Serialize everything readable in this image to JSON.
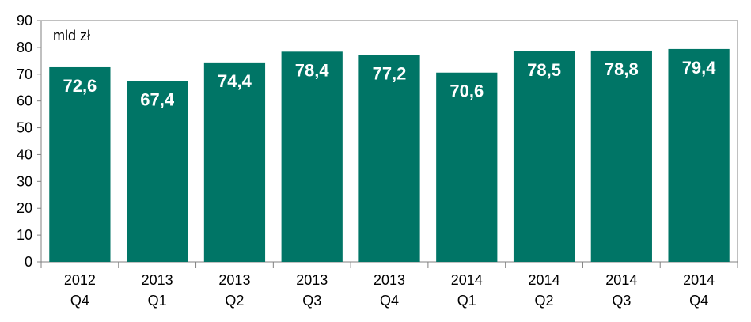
{
  "chart_data": {
    "type": "bar",
    "categories": [
      [
        "2012",
        "Q4"
      ],
      [
        "2013",
        "Q1"
      ],
      [
        "2013",
        "Q2"
      ],
      [
        "2013",
        "Q3"
      ],
      [
        "2013",
        "Q4"
      ],
      [
        "2014",
        "Q1"
      ],
      [
        "2014",
        "Q2"
      ],
      [
        "2014",
        "Q3"
      ],
      [
        "2014",
        "Q4"
      ]
    ],
    "values": [
      72.6,
      67.4,
      74.4,
      78.4,
      77.2,
      70.6,
      78.5,
      78.8,
      79.4
    ],
    "data_labels": [
      "72,6",
      "67,4",
      "74,4",
      "78,4",
      "77,2",
      "70,6",
      "78,5",
      "78,8",
      "79,4"
    ],
    "unit_label": "mld zł",
    "title": "",
    "xlabel": "",
    "ylabel": "",
    "ylim": [
      0,
      90
    ],
    "yticks": [
      0,
      10,
      20,
      30,
      40,
      50,
      60,
      70,
      80,
      90
    ],
    "grid": false,
    "legend": "none",
    "bar_color": "#007566",
    "label_color": "#ffffff",
    "axis_color": "#808080"
  }
}
